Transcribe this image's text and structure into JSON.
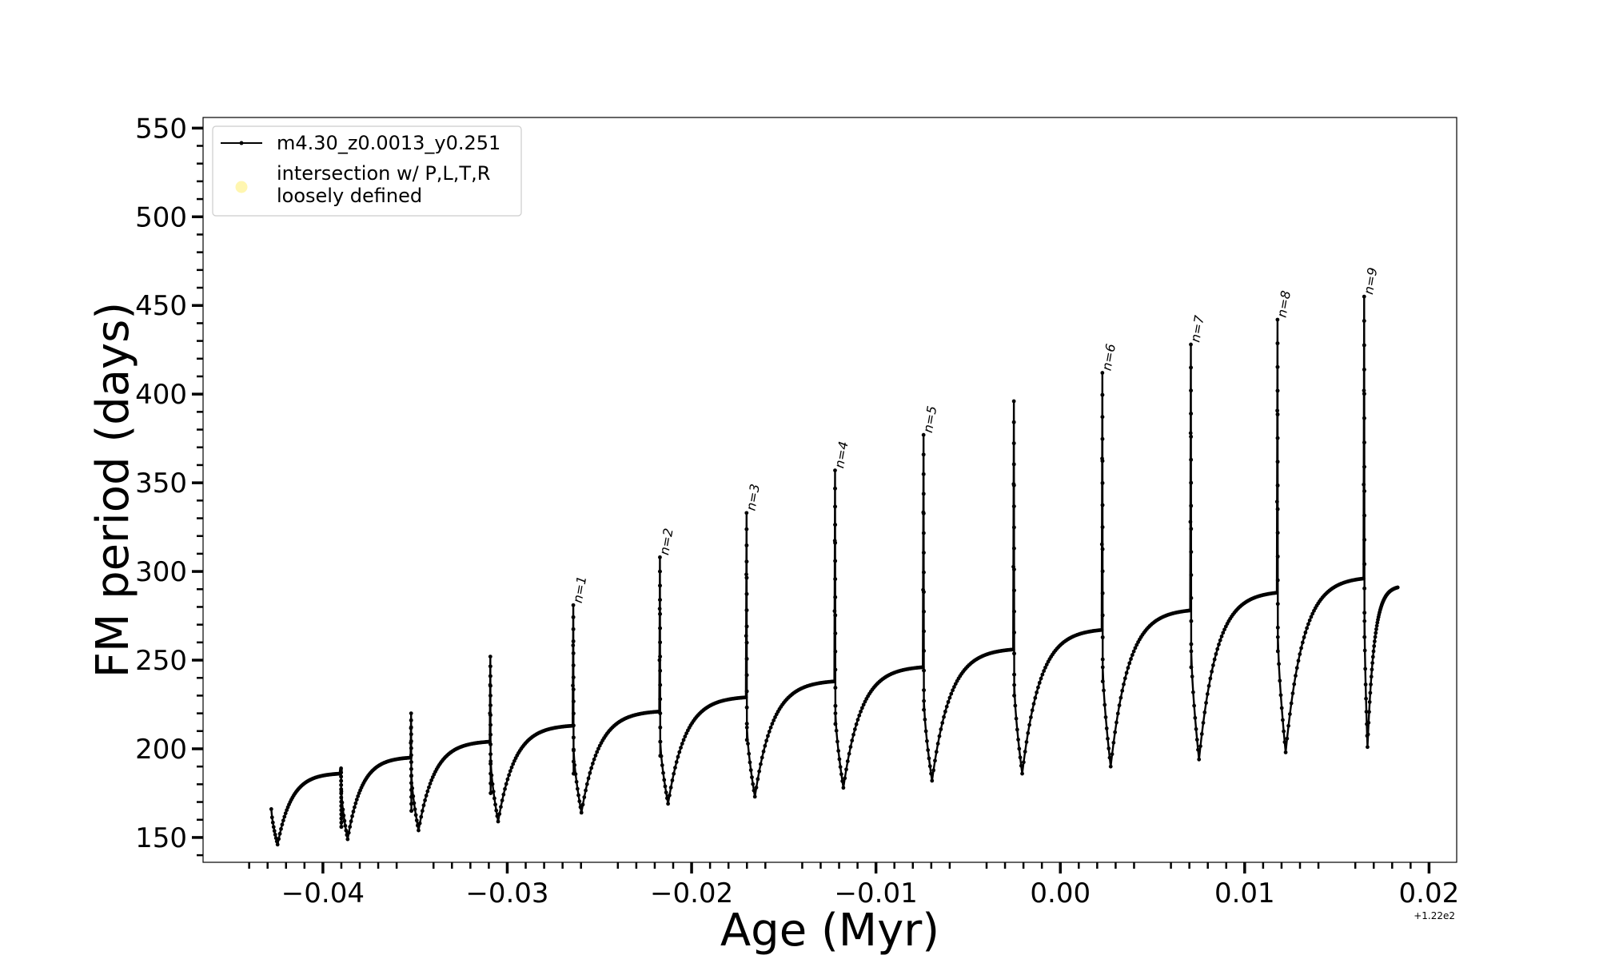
{
  "chart_data": {
    "type": "line",
    "xlabel": "Age (Myr)",
    "ylabel": "FM period (days)",
    "x_offset_label": "+1.22e2",
    "x_offset": 122,
    "xlim": [
      -0.0465,
      0.0215
    ],
    "ylim": [
      136,
      556
    ],
    "xticks": [
      -0.04,
      -0.03,
      -0.02,
      -0.01,
      0.0,
      0.01,
      0.02
    ],
    "xtick_labels": [
      "−0.04",
      "−0.03",
      "−0.02",
      "−0.01",
      "0.00",
      "0.01",
      "0.02"
    ],
    "yticks": [
      150,
      200,
      250,
      300,
      350,
      400,
      450,
      500,
      550
    ],
    "ytick_labels": [
      "150",
      "200",
      "250",
      "300",
      "350",
      "400",
      "450",
      "500",
      "550"
    ],
    "grid": false,
    "legend_position": "top-left",
    "series": [
      {
        "name": "m4.30_z0.0013_y0.251",
        "color": "#000000",
        "marker": "dot",
        "pulse_cycles": [
          {
            "start": -0.0428,
            "start_period": 166,
            "min": 146,
            "plateau": 186,
            "spike_peak": 189,
            "spike_drop": 156
          },
          {
            "start": -0.039,
            "start_period": 176,
            "min": 149,
            "plateau": 195,
            "spike_peak": 220,
            "spike_drop": 165
          },
          {
            "start": -0.0352,
            "start_period": 185,
            "min": 154,
            "plateau": 204,
            "spike_peak": 252,
            "spike_drop": 175
          },
          {
            "start": -0.0309,
            "start_period": 193,
            "min": 159,
            "plateau": 213,
            "spike_peak": 281,
            "spike_drop": 186
          },
          {
            "start": -0.0264,
            "start_period": 199,
            "min": 164,
            "plateau": 221,
            "spike_peak": 308,
            "spike_drop": 196
          },
          {
            "start": -0.0217,
            "start_period": 204,
            "min": 169,
            "plateau": 229,
            "spike_peak": 333,
            "spike_drop": 205
          },
          {
            "start": -0.017,
            "start_period": 212,
            "min": 173,
            "plateau": 238,
            "spike_peak": 357,
            "spike_drop": 214
          },
          {
            "start": -0.0122,
            "start_period": 220,
            "min": 178,
            "plateau": 246,
            "spike_peak": 377,
            "spike_drop": 222
          },
          {
            "start": -0.0074,
            "start_period": 227,
            "min": 182,
            "plateau": 256,
            "spike_peak": 396,
            "spike_drop": 230
          },
          {
            "start": -0.0025,
            "start_period": 236,
            "min": 186,
            "plateau": 267,
            "spike_peak": 412,
            "spike_drop": 238
          },
          {
            "start": 0.0023,
            "start_period": 246,
            "min": 190,
            "plateau": 278,
            "spike_peak": 428,
            "spike_drop": 246
          },
          {
            "start": 0.0071,
            "start_period": 255,
            "min": 194,
            "plateau": 288,
            "spike_peak": 442,
            "spike_drop": 255
          },
          {
            "start": 0.0118,
            "start_period": 263,
            "min": 198,
            "plateau": 296,
            "spike_peak": 455,
            "spike_drop": 263
          },
          {
            "start": 0.0165,
            "start_period": 272,
            "min": 201,
            "plateau": 291,
            "spike_peak": null,
            "spike_drop": null
          }
        ],
        "end_x": 0.0183,
        "end_period": 291
      },
      {
        "name": "intersection w/ P,L,T,R\nloosely defined",
        "legend_lines": [
          "intersection w/ P,L,T,R",
          "loosely defined"
        ],
        "color": "#fff6b0",
        "marker": "circle",
        "points": []
      }
    ],
    "annotations": [
      {
        "text": "n=1",
        "x": -0.0264,
        "y": 281
      },
      {
        "text": "n=2",
        "x": -0.0217,
        "y": 308
      },
      {
        "text": "n=3",
        "x": -0.017,
        "y": 333
      },
      {
        "text": "n=4",
        "x": -0.0122,
        "y": 357
      },
      {
        "text": "n=5",
        "x": -0.0074,
        "y": 377
      },
      {
        "text": "n=6",
        "x": 0.0023,
        "y": 412
      },
      {
        "text": "n=7",
        "x": 0.0071,
        "y": 428
      },
      {
        "text": "n=8",
        "x": 0.0118,
        "y": 442
      },
      {
        "text": "n=9",
        "x": 0.0165,
        "y": 455
      }
    ]
  }
}
